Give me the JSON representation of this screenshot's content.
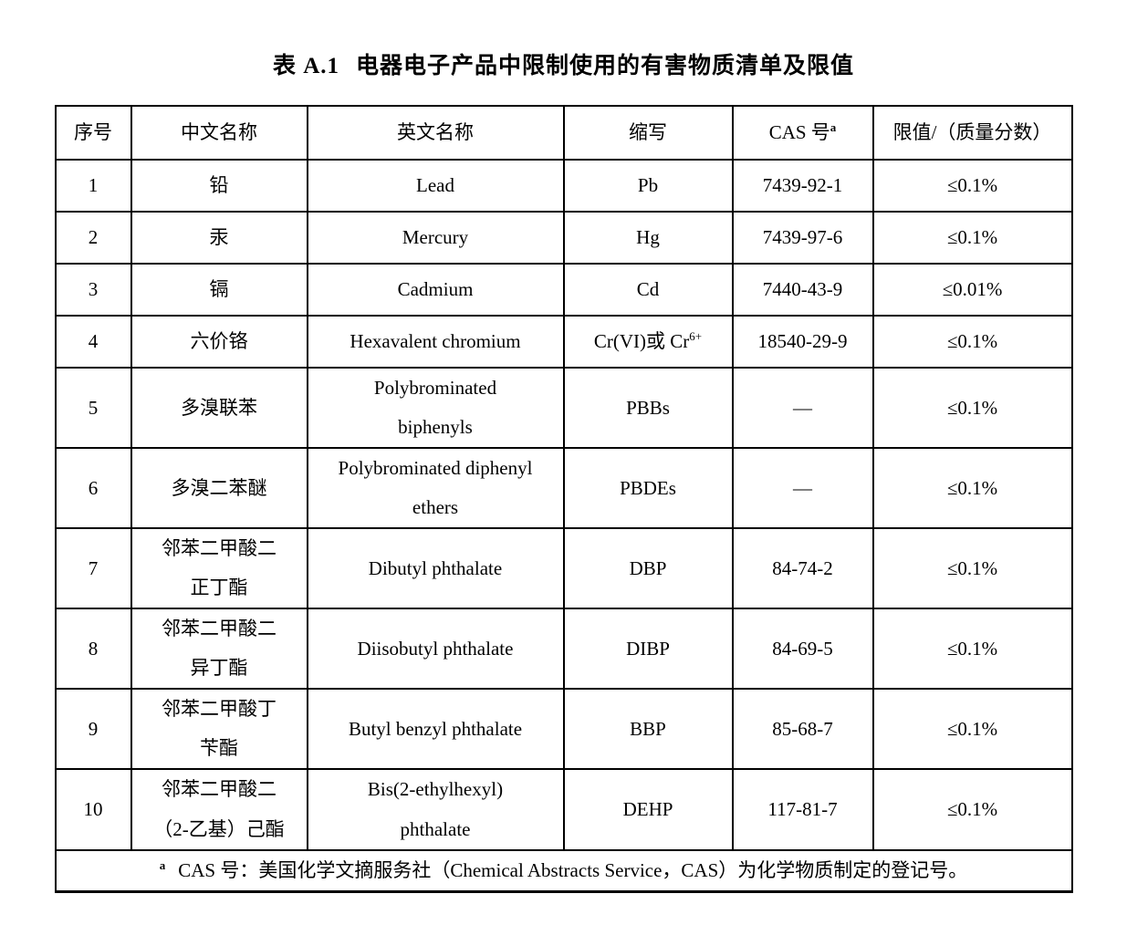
{
  "title": {
    "prefix": "表 A.1",
    "text": "电器电子产品中限制使用的有害物质清单及限值"
  },
  "table": {
    "headers": [
      "序号",
      "中文名称",
      "英文名称",
      "缩写",
      "CAS 号",
      "限值/（质量分数）"
    ],
    "cas_header_sup": "a",
    "rows": [
      {
        "no": "1",
        "cn": "铅",
        "en": "Lead",
        "abbr": "Pb",
        "cas": "7439-92-1",
        "limit": "≤0.1%"
      },
      {
        "no": "2",
        "cn": "汞",
        "en": "Mercury",
        "abbr": "Hg",
        "cas": "7439-97-6",
        "limit": "≤0.1%"
      },
      {
        "no": "3",
        "cn": "镉",
        "en": "Cadmium",
        "abbr": "Cd",
        "cas": "7440-43-9",
        "limit": "≤0.01%"
      },
      {
        "no": "4",
        "cn": "六价铬",
        "en": "Hexavalent chromium",
        "abbr": "Cr(VI)或 Cr",
        "abbr_sup": "6+",
        "cas": "18540-29-9",
        "limit": "≤0.1%"
      },
      {
        "no": "5",
        "cn": "多溴联苯",
        "en": "Polybrominated\nbiphenyls",
        "abbr": "PBBs",
        "cas": "—",
        "limit": "≤0.1%"
      },
      {
        "no": "6",
        "cn": "多溴二苯醚",
        "en": "Polybrominated diphenyl\nethers",
        "abbr": "PBDEs",
        "cas": "—",
        "limit": "≤0.1%"
      },
      {
        "no": "7",
        "cn": "邻苯二甲酸二\n正丁酯",
        "en": "Dibutyl phthalate",
        "abbr": "DBP",
        "cas": "84-74-2",
        "limit": "≤0.1%"
      },
      {
        "no": "8",
        "cn": "邻苯二甲酸二\n异丁酯",
        "en": "Diisobutyl phthalate",
        "abbr": "DIBP",
        "cas": "84-69-5",
        "limit": "≤0.1%"
      },
      {
        "no": "9",
        "cn": "邻苯二甲酸丁\n苄酯",
        "en": "Butyl benzyl phthalate",
        "abbr": "BBP",
        "cas": "85-68-7",
        "limit": "≤0.1%"
      },
      {
        "no": "10",
        "cn": "邻苯二甲酸二\n（2-乙基）己酯",
        "en": "Bis(2-ethylhexyl)\nphthalate",
        "abbr": "DEHP",
        "cas": "117-81-7",
        "limit": "≤0.1%"
      }
    ],
    "footnote": {
      "sup": "a",
      "text": "CAS 号：美国化学文摘服务社（Chemical Abstracts Service，CAS）为化学物质制定的登记号。"
    }
  }
}
